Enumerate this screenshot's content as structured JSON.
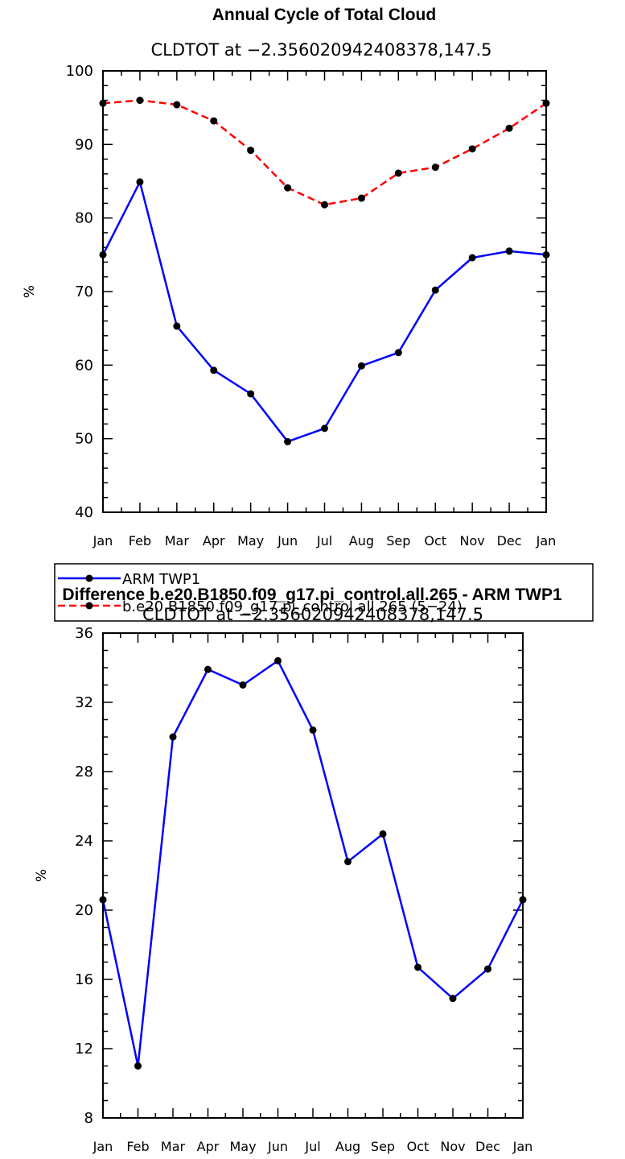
{
  "chart_data": [
    {
      "type": "line",
      "title": "Annual Cycle of Total Cloud",
      "subtitle": "CLDTOT at −2.356020942408378,147.5",
      "xlabel": "",
      "ylabel": "%",
      "ylim": [
        40,
        100
      ],
      "yticks": [
        "40",
        "50",
        "60",
        "70",
        "80",
        "90",
        "100"
      ],
      "categories": [
        "Jan",
        "Feb",
        "Mar",
        "Apr",
        "May",
        "Jun",
        "Jul",
        "Aug",
        "Sep",
        "Oct",
        "Nov",
        "Dec",
        "Jan"
      ],
      "series": [
        {
          "name": "ARM TWP1",
          "color": "#0000ff",
          "style": "solid",
          "values": [
            75.0,
            84.9,
            65.3,
            59.3,
            56.1,
            49.6,
            51.4,
            59.9,
            61.7,
            70.2,
            74.6,
            75.5,
            75.0
          ]
        },
        {
          "name": "b.e20.B1850.f09_g17.pi_control.all.265 (5−24)",
          "color": "#ff0000",
          "style": "dashed",
          "values": [
            95.6,
            96.0,
            95.4,
            93.2,
            89.2,
            84.1,
            81.8,
            82.7,
            86.1,
            86.9,
            89.4,
            92.2,
            95.6
          ]
        }
      ]
    },
    {
      "type": "line",
      "title": "Difference b.e20.B1850.f09_g17.pi_control.all.265 - ARM TWP1",
      "subtitle": "CLDTOT at −2.356020942408378,147.5",
      "xlabel": "",
      "ylabel": "%",
      "ylim": [
        8,
        36
      ],
      "yticks": [
        "8",
        "12",
        "16",
        "20",
        "24",
        "28",
        "32",
        "36"
      ],
      "categories": [
        "Jan",
        "Feb",
        "Mar",
        "Apr",
        "May",
        "Jun",
        "Jul",
        "Aug",
        "Sep",
        "Oct",
        "Nov",
        "Dec",
        "Jan"
      ],
      "series": [
        {
          "name": "Difference",
          "color": "#0000ff",
          "style": "solid",
          "values": [
            20.6,
            11.0,
            30.0,
            33.9,
            33.0,
            34.4,
            30.4,
            22.8,
            24.4,
            16.7,
            14.9,
            16.6,
            20.6
          ]
        }
      ]
    }
  ]
}
